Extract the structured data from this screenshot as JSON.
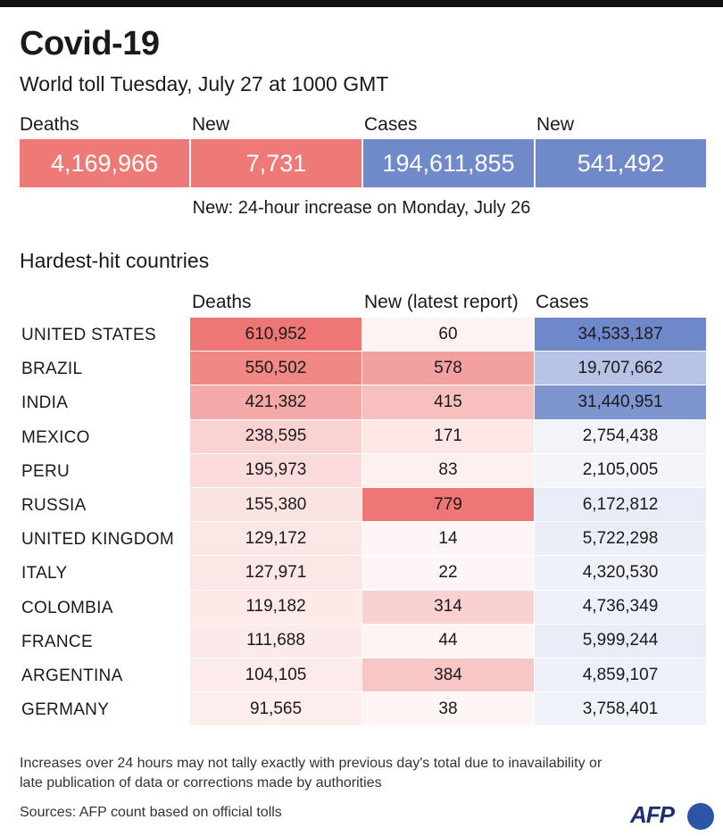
{
  "title": "Covid-19",
  "subtitle": "World toll Tuesday, July 27 at 1000 GMT",
  "summary": [
    {
      "label": "Deaths",
      "value": "4,169,966"
    },
    {
      "label": "New",
      "value": "7,731"
    },
    {
      "label": "Cases",
      "value": "194,611,855"
    },
    {
      "label": "New",
      "value": "541,492"
    }
  ],
  "note": "New: 24-hour increase on Monday, July 26",
  "section_title": "Hardest-hit countries",
  "colors": {
    "red": "#ee7775",
    "blue": "#6f88c9"
  },
  "chart_data": {
    "type": "table",
    "columns": [
      "Deaths",
      "New (latest report)",
      "Cases"
    ],
    "rows": [
      {
        "country": "UNITED STATES",
        "deaths": 610952,
        "new": 60,
        "cases": 34533187
      },
      {
        "country": "BRAZIL",
        "deaths": 550502,
        "new": 578,
        "cases": 19707662
      },
      {
        "country": "INDIA",
        "deaths": 421382,
        "new": 415,
        "cases": 31440951
      },
      {
        "country": "MEXICO",
        "deaths": 238595,
        "new": 171,
        "cases": 2754438
      },
      {
        "country": "PERU",
        "deaths": 195973,
        "new": 83,
        "cases": 2105005
      },
      {
        "country": "RUSSIA",
        "deaths": 155380,
        "new": 779,
        "cases": 6172812
      },
      {
        "country": "UNITED KINGDOM",
        "deaths": 129172,
        "new": 14,
        "cases": 5722298
      },
      {
        "country": "ITALY",
        "deaths": 127971,
        "new": 22,
        "cases": 4320530
      },
      {
        "country": "COLOMBIA",
        "deaths": 119182,
        "new": 314,
        "cases": 4736349
      },
      {
        "country": "FRANCE",
        "deaths": 111688,
        "new": 44,
        "cases": 5999244
      },
      {
        "country": "ARGENTINA",
        "deaths": 104105,
        "new": 384,
        "cases": 4859107
      },
      {
        "country": "GERMANY",
        "deaths": 91565,
        "new": 38,
        "cases": 3758401
      }
    ]
  },
  "footnote": "Increases over 24 hours may not tally exactly with previous day's total due to inavailability or late publication of data or corrections made by authorities",
  "source": "Sources: AFP count based on official tolls",
  "logo": "AFP"
}
